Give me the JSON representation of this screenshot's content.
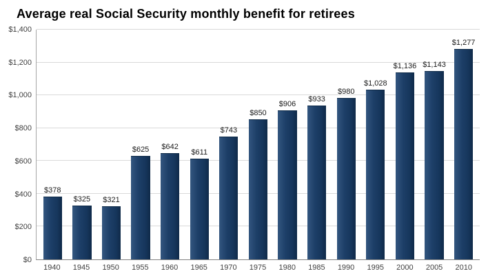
{
  "title": "Average real Social Security monthly benefit for retirees",
  "chart_data": {
    "type": "bar",
    "title": "Average real Social Security monthly benefit for retirees",
    "xlabel": "",
    "ylabel": "",
    "categories": [
      "1940",
      "1945",
      "1950",
      "1955",
      "1960",
      "1965",
      "1970",
      "1975",
      "1980",
      "1985",
      "1990",
      "1995",
      "2000",
      "2005",
      "2010"
    ],
    "values": [
      378,
      325,
      321,
      625,
      642,
      611,
      743,
      850,
      906,
      933,
      980,
      1028,
      1136,
      1143,
      1277
    ],
    "data_labels": [
      "$378",
      "$325",
      "$321",
      "$625",
      "$642",
      "$611",
      "$743",
      "$850",
      "$906",
      "$933",
      "$980",
      "$1,028",
      "$1,136",
      "$1,143",
      "$1,277"
    ],
    "ylim": [
      0,
      1400
    ],
    "ytick_step": 200,
    "ytick_labels": [
      "$0",
      "$200",
      "$400",
      "$600",
      "$800",
      "$1,000",
      "$1,200",
      "$1,400"
    ],
    "grid": true,
    "legend_position": "none",
    "bar_color": "#16365C",
    "gridline_color": "#D9D9D9",
    "background_color": "#FFFFFF"
  }
}
